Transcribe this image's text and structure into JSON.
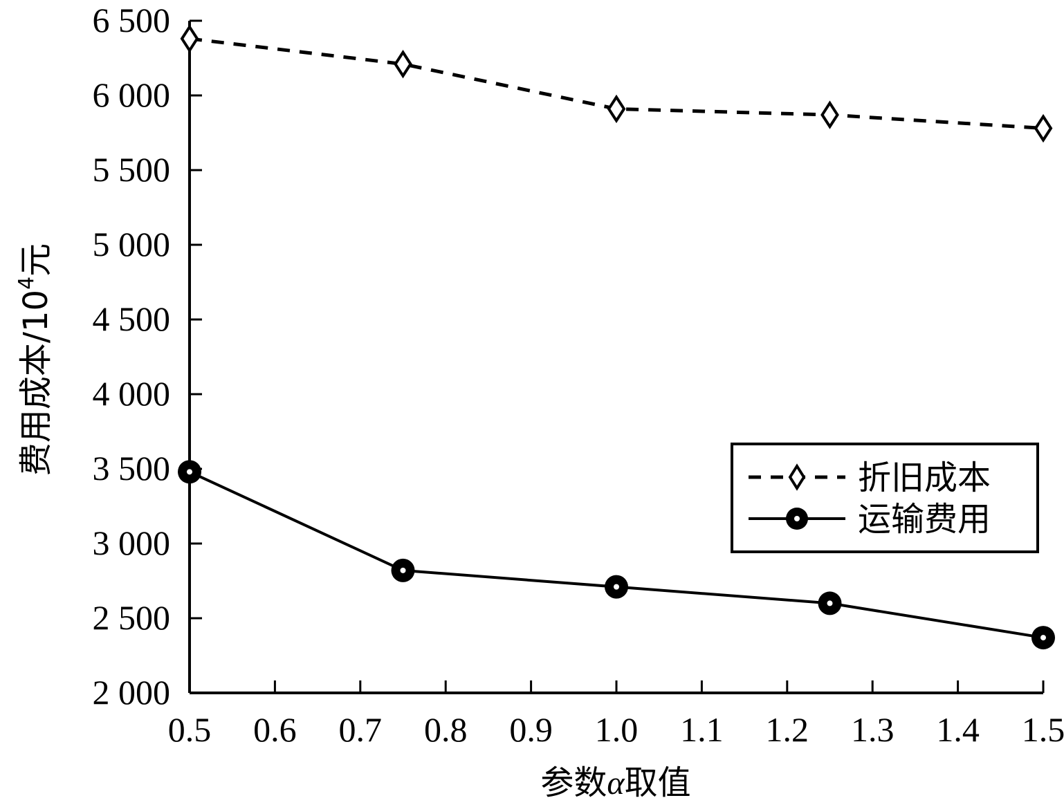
{
  "chart_data": {
    "type": "line",
    "xlabel_parts": [
      "参数",
      "α",
      "取值"
    ],
    "ylabel_parts": [
      "费用成本/10",
      "4",
      "元"
    ],
    "x": [
      0.5,
      0.75,
      1.0,
      1.25,
      1.5
    ],
    "xlim": [
      0.5,
      1.5
    ],
    "ylim": [
      2000,
      6500
    ],
    "x_ticks": [
      0.5,
      0.6,
      0.7,
      0.8,
      0.9,
      1.0,
      1.1,
      1.2,
      1.3,
      1.4,
      1.5
    ],
    "x_tick_labels": [
      "0.5",
      "0.6",
      "0.7",
      "0.8",
      "0.9",
      "1.0",
      "1.1",
      "1.2",
      "1.3",
      "1.4",
      "1.5"
    ],
    "y_ticks": [
      2000,
      2500,
      3000,
      3500,
      4000,
      4500,
      5000,
      5500,
      6000,
      6500
    ],
    "y_tick_labels": [
      "2 000",
      "2 500",
      "3 000",
      "3 500",
      "4 000",
      "4 500",
      "5 000",
      "5 500",
      "6 000",
      "6 500"
    ],
    "grid": false,
    "legend_position": "center-right",
    "series": [
      {
        "name": "折旧成本",
        "values": [
          6380,
          6210,
          5910,
          5870,
          5780
        ],
        "line_style": "dashed",
        "marker": "diamond",
        "color": "#000000"
      },
      {
        "name": "运输费用",
        "values": [
          3480,
          2820,
          2710,
          2600,
          2370
        ],
        "line_style": "solid",
        "marker": "circle",
        "color": "#000000"
      }
    ]
  }
}
